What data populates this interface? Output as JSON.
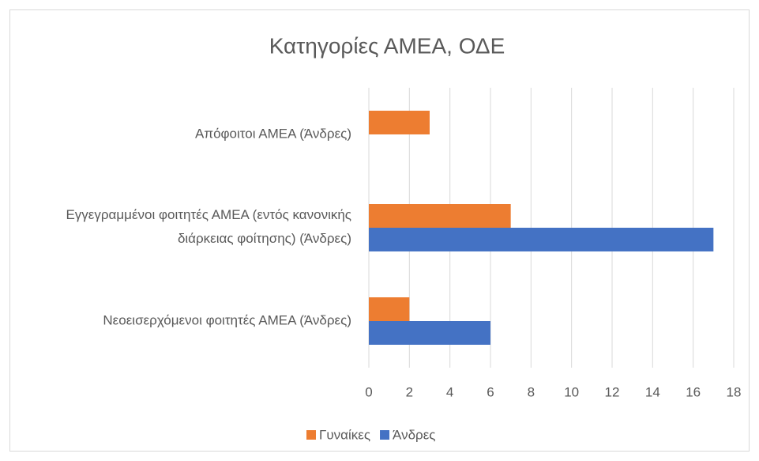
{
  "chart_data": {
    "type": "bar",
    "orientation": "horizontal",
    "title": "Κατηγορίες ΑΜΕΑ, ΟΔΕ",
    "categories": [
      "Απόφοιτοι ΑΜΕΑ (Άνδρες)",
      "Εγγεγραμμένοι φοιτητές ΑΜΕΑ (εντός κανονικής διάρκειας φοίτησης) (Άνδρες)",
      "Νεοεισερχόμενοι φοιτητές ΑΜΕΑ (Άνδρες)"
    ],
    "series": [
      {
        "name": "Γυναίκες",
        "color": "#ed7d31",
        "values": [
          3,
          7,
          2
        ]
      },
      {
        "name": "Άνδρες",
        "color": "#4472c4",
        "values": [
          0,
          17,
          6
        ]
      }
    ],
    "xlim": [
      0,
      18
    ],
    "xticks": [
      0,
      2,
      4,
      6,
      8,
      10,
      12,
      14,
      16,
      18
    ],
    "grid": true,
    "legend": "bottom"
  }
}
